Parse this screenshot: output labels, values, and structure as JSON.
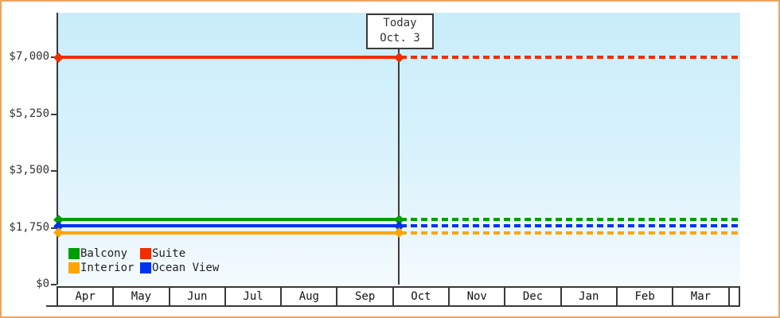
{
  "frame": {
    "border_color": "#eda55f",
    "axis_color": "#3a3a3a",
    "label_color": "#333333"
  },
  "chart_data": {
    "type": "line",
    "title": "",
    "x_categories": [
      "Apr",
      "May",
      "Jun",
      "Jul",
      "Aug",
      "Sep",
      "Oct",
      "Nov",
      "Dec",
      "Jan",
      "Feb",
      "Mar"
    ],
    "y_axis": {
      "range": [
        0,
        7000
      ],
      "ticks": [
        {
          "value": 0,
          "label": "$0"
        },
        {
          "value": 1750,
          "label": "$1,750"
        },
        {
          "value": 3500,
          "label": "$3,500"
        },
        {
          "value": 5250,
          "label": "$5,250"
        },
        {
          "value": 7000,
          "label": "$7,000"
        }
      ]
    },
    "series": [
      {
        "name": "Suite",
        "color": "#f02e00",
        "value": 6999
      },
      {
        "name": "Balcony",
        "color": "#009e00",
        "value": 1999
      },
      {
        "name": "Ocean View",
        "color": "#0033f0",
        "value": 1799
      },
      {
        "name": "Interior",
        "color": "#ffa500",
        "value": 1599
      }
    ],
    "today": {
      "label": "Today",
      "date": "Oct. 3",
      "x_fraction": 0.4994
    },
    "line_style": {
      "before_today": "solid",
      "after_today": "dashed",
      "marker": "diamond"
    },
    "legend_position": "bottom-left",
    "grid": false
  },
  "legend": {
    "items": [
      {
        "label": "Balcony",
        "color": "#009e00"
      },
      {
        "label": "Suite",
        "color": "#f02e00"
      },
      {
        "label": "Interior",
        "color": "#ffa500"
      },
      {
        "label": "Ocean View",
        "color": "#0033f0"
      }
    ]
  }
}
